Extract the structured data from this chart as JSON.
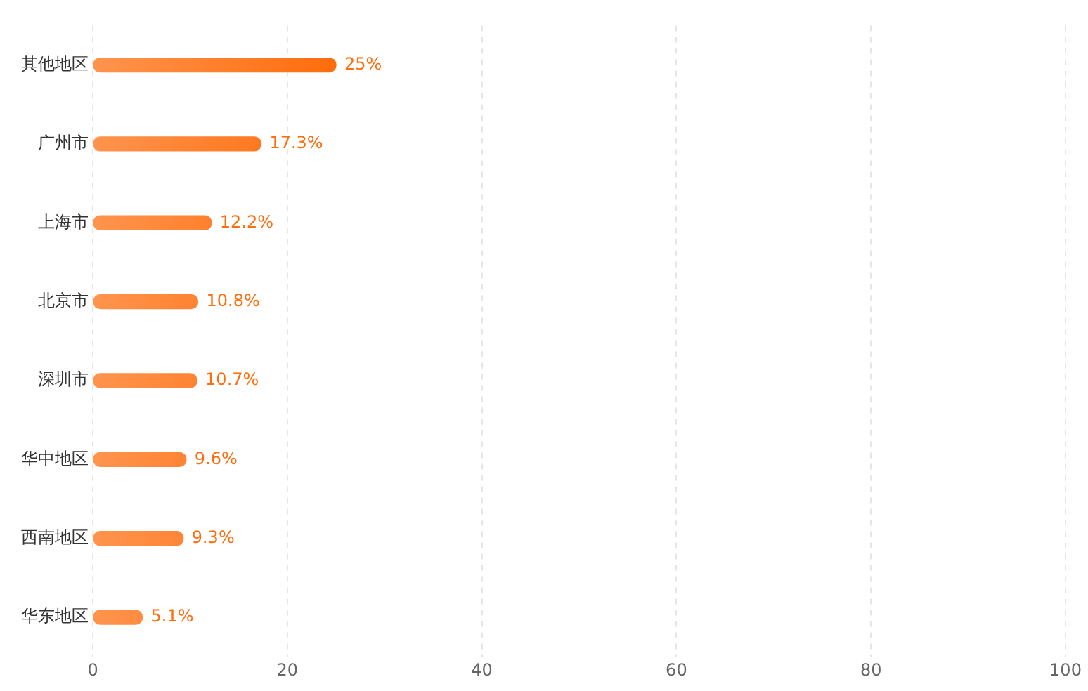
{
  "chart_data": {
    "type": "bar",
    "orientation": "horizontal",
    "categories": [
      "其他地区",
      "广州市",
      "上海市",
      "北京市",
      "深圳市",
      "华中地区",
      "西南地区",
      "华东地区"
    ],
    "values": [
      25,
      17.3,
      12.2,
      10.8,
      10.7,
      9.6,
      9.3,
      5.1
    ],
    "value_labels": [
      "25%",
      "17.3%",
      "12.2%",
      "10.8%",
      "10.7%",
      "9.6%",
      "9.3%",
      "5.1%"
    ],
    "color": "#ff6d0d",
    "xlim": [
      0,
      100
    ],
    "xticks": [
      0,
      20,
      40,
      60,
      80,
      100
    ],
    "grid": "x",
    "legend": false
  }
}
